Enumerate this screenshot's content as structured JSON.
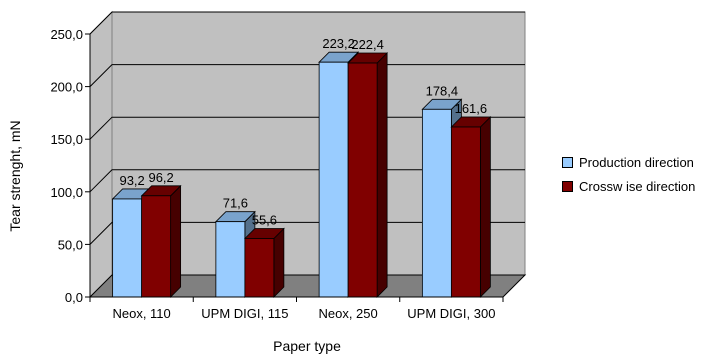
{
  "chart_data": {
    "type": "bar",
    "categories": [
      "Neox, 110",
      "UPM DIGI, 115",
      "Neox, 250",
      "UPM DIGI, 300"
    ],
    "series": [
      {
        "name": "Production direction",
        "values": [
          93.2,
          71.6,
          223.2,
          178.4
        ],
        "color": "#99ccff"
      },
      {
        "name": "Crosswise direction",
        "values": [
          96.2,
          55.6,
          222.4,
          161.6
        ],
        "color": "#800000"
      }
    ],
    "data_labels": [
      [
        "93,2",
        "71,6",
        "223,2",
        "178,4"
      ],
      [
        "96,2",
        "55,6",
        "222,4",
        "161,6"
      ]
    ],
    "y_ticks": [
      "0,0",
      "50,0",
      "100,0",
      "150,0",
      "200,0",
      "250,0"
    ],
    "ylim": [
      0,
      250
    ],
    "xlabel": "Paper type",
    "ylabel": "Tear strenght, mN",
    "legend_position": "right",
    "grid": true,
    "three_d": true
  },
  "legend": {
    "items": [
      {
        "label": "Production direction",
        "color": "#99ccff"
      },
      {
        "label": "Crossw ise direction",
        "color": "#800000"
      }
    ]
  }
}
